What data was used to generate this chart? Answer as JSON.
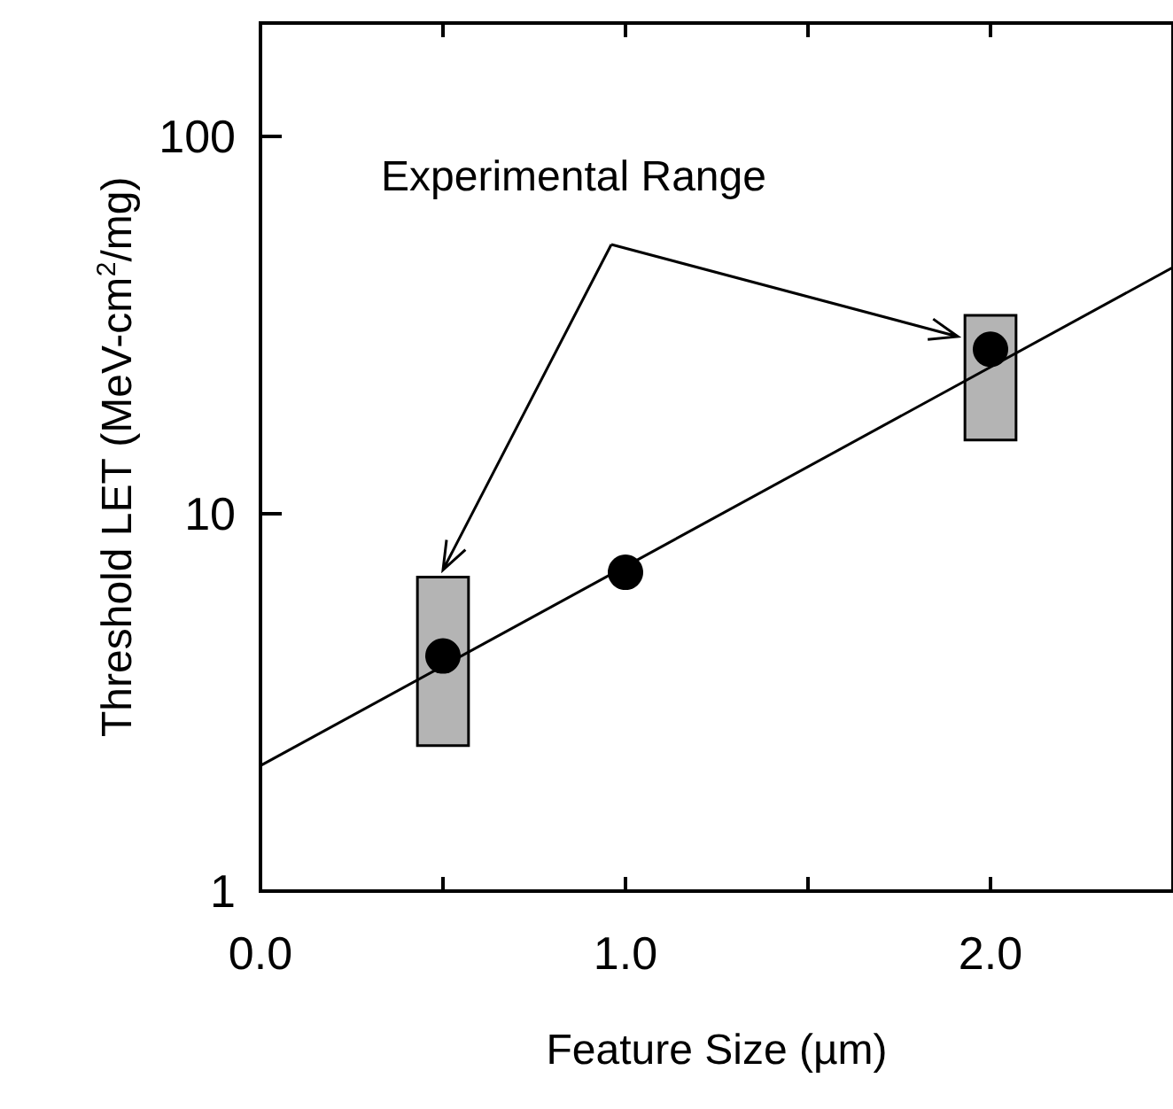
{
  "chart_data": {
    "type": "scatter",
    "xlabel": "Feature Size (µm)",
    "ylabel": "Threshold LET (MeV-cm$^{2}$/mg)",
    "annotations": [
      {
        "text": "Experimental Range",
        "x": 0.5,
        "y": 6.8
      }
    ],
    "log": "y",
    "grid": false,
    "xlim": [
      0,
      2.5
    ],
    "ylim": [
      1,
      200
    ],
    "xticks": [
      {
        "value": 0,
        "label": "0.0"
      },
      {
        "value": 0.5,
        "label": null
      },
      {
        "value": 1,
        "label": "1.0"
      },
      {
        "value": 1.5,
        "label": null
      },
      {
        "value": 2,
        "label": "2.0"
      }
    ],
    "yticks": [
      1,
      10,
      100
    ],
    "series": [
      {
        "type": "bar",
        "x": [
          0.5,
          2.0
        ],
        "base": [
          2.43,
          15.7
        ],
        "values": [
          4.37,
          17.9
        ],
        "color": "#b4b4b4"
      },
      {
        "type": "line",
        "x": [
          0,
          2.5
        ],
        "values": [
          2.15,
          45
        ],
        "color": "#000000",
        "marker": "none"
      },
      {
        "x": [
          0.5,
          1.0,
          2.0
        ],
        "values": [
          4.2,
          7.0,
          27.3
        ],
        "color": "#000000",
        "marker": "circle"
      }
    ]
  }
}
